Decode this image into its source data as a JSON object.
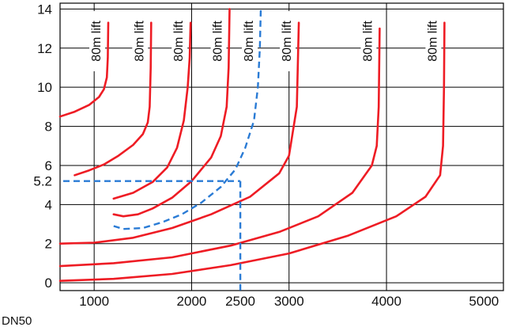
{
  "chart_data": {
    "type": "line",
    "title": "",
    "xlabel": "",
    "ylabel": "",
    "caption": "DN50",
    "xlim": [
      650,
      5200
    ],
    "ylim": [
      -0.4,
      14.3
    ],
    "x_ticks": [
      1000,
      2000,
      2500,
      3000,
      4000,
      5000
    ],
    "y_ticks": [
      0,
      2,
      4,
      5.2,
      6,
      8,
      10,
      12,
      14
    ],
    "x_gridlines": [
      1000,
      2000,
      3000,
      4000
    ],
    "y_gridlines": [
      0,
      2,
      4,
      6,
      8,
      10,
      12,
      14
    ],
    "colors": {
      "curve": "#ee1c24",
      "guide": "#2a7bd5",
      "grid": "#000000"
    },
    "series": [
      {
        "label": "80m lift",
        "points": [
          [
            650,
            8.5
          ],
          [
            800,
            8.75
          ],
          [
            950,
            9.1
          ],
          [
            1050,
            9.5
          ],
          [
            1100,
            9.9
          ],
          [
            1130,
            10.5
          ],
          [
            1140,
            11.5
          ],
          [
            1145,
            13.3
          ]
        ]
      },
      {
        "label": "80m lift",
        "points": [
          [
            800,
            5.5
          ],
          [
            950,
            5.75
          ],
          [
            1100,
            6.05
          ],
          [
            1250,
            6.5
          ],
          [
            1400,
            7.05
          ],
          [
            1500,
            7.6
          ],
          [
            1550,
            8.2
          ],
          [
            1570,
            9
          ],
          [
            1580,
            11
          ],
          [
            1585,
            13.3
          ]
        ]
      },
      {
        "label": "80m lift",
        "points": [
          [
            1200,
            4.3
          ],
          [
            1400,
            4.6
          ],
          [
            1600,
            5.15
          ],
          [
            1750,
            5.9
          ],
          [
            1850,
            6.9
          ],
          [
            1920,
            8.3
          ],
          [
            1960,
            10
          ],
          [
            1980,
            11.5
          ],
          [
            1990,
            13.3
          ]
        ]
      },
      {
        "label": "80m lift",
        "points": [
          [
            1200,
            3.5
          ],
          [
            1300,
            3.4
          ],
          [
            1450,
            3.5
          ],
          [
            1600,
            3.8
          ],
          [
            1800,
            4.35
          ],
          [
            2000,
            5.2
          ],
          [
            2200,
            6.4
          ],
          [
            2300,
            7.5
          ],
          [
            2360,
            9
          ],
          [
            2380,
            11
          ],
          [
            2390,
            14
          ]
        ]
      },
      {
        "label": "80m lift",
        "points": [
          [
            650,
            2
          ],
          [
            1000,
            2.05
          ],
          [
            1400,
            2.3
          ],
          [
            1800,
            2.8
          ],
          [
            2200,
            3.5
          ],
          [
            2600,
            4.4
          ],
          [
            2900,
            5.6
          ],
          [
            3000,
            6.5
          ],
          [
            3080,
            9
          ],
          [
            3100,
            13.3
          ]
        ]
      },
      {
        "label": "80m lift",
        "points": [
          [
            650,
            0.85
          ],
          [
            1200,
            1
          ],
          [
            1800,
            1.3
          ],
          [
            2400,
            1.9
          ],
          [
            2900,
            2.6
          ],
          [
            3300,
            3.4
          ],
          [
            3650,
            4.6
          ],
          [
            3850,
            6
          ],
          [
            3900,
            7
          ],
          [
            3920,
            9
          ],
          [
            3930,
            13
          ]
        ]
      },
      {
        "label": "80m lift",
        "points": [
          [
            650,
            0.1
          ],
          [
            1200,
            0.2
          ],
          [
            1800,
            0.45
          ],
          [
            2400,
            0.9
          ],
          [
            3000,
            1.5
          ],
          [
            3600,
            2.4
          ],
          [
            4100,
            3.4
          ],
          [
            4400,
            4.4
          ],
          [
            4550,
            5.5
          ],
          [
            4580,
            7
          ],
          [
            4590,
            10
          ],
          [
            4595,
            13.3
          ]
        ]
      }
    ],
    "guide_curve": {
      "label": "80m lift",
      "points": [
        [
          1200,
          2.9
        ],
        [
          1300,
          2.75
        ],
        [
          1500,
          2.8
        ],
        [
          1700,
          3.1
        ],
        [
          1900,
          3.5
        ],
        [
          2100,
          4.1
        ],
        [
          2300,
          4.9
        ],
        [
          2450,
          5.8
        ],
        [
          2550,
          6.9
        ],
        [
          2640,
          8.3
        ],
        [
          2680,
          10
        ],
        [
          2700,
          12
        ],
        [
          2710,
          14
        ]
      ]
    },
    "guide_lines": {
      "y": 5.2,
      "x": 2500
    }
  }
}
